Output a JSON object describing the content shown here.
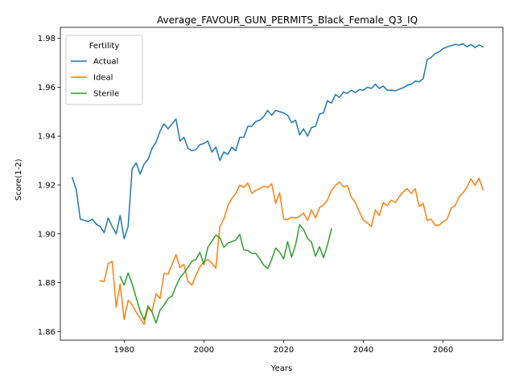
{
  "chart_data": {
    "type": "line",
    "title": "Average_FAVOUR_GUN_PERMITS_Black_Female_Q3_IQ",
    "xlabel": "Years",
    "ylabel": "Score(1-2)",
    "xlim": [
      1964,
      2075
    ],
    "ylim": [
      1.8565,
      1.9845
    ],
    "xticks": [
      1980,
      2000,
      2020,
      2040,
      2060
    ],
    "yticks": [
      1.86,
      1.88,
      1.9,
      1.92,
      1.94,
      1.96,
      1.98
    ],
    "ytick_labels": [
      "1.86",
      "1.88",
      "1.90",
      "1.92",
      "1.94",
      "1.96",
      "1.98"
    ],
    "legend": {
      "title": "Fertility",
      "position": "top-left"
    },
    "grid": false,
    "series": [
      {
        "name": "Actual",
        "color": "#1f77b4",
        "points": [
          [
            1967,
            1.923
          ],
          [
            1968,
            1.918
          ],
          [
            1969,
            1.906
          ],
          [
            1970,
            1.9055
          ],
          [
            1971,
            1.905
          ],
          [
            1972,
            1.906
          ],
          [
            1973,
            1.904
          ],
          [
            1974,
            1.903
          ],
          [
            1975,
            1.9005
          ],
          [
            1976,
            1.9065
          ],
          [
            1977,
            1.903
          ],
          [
            1978,
            1.9
          ],
          [
            1979,
            1.9075
          ],
          [
            1980,
            1.898
          ],
          [
            1981,
            1.903
          ],
          [
            1982,
            1.9265
          ],
          [
            1983,
            1.929
          ],
          [
            1984,
            1.9245
          ],
          [
            1985,
            1.9285
          ],
          [
            1986,
            1.9305
          ],
          [
            1987,
            1.935
          ],
          [
            1988,
            1.9375
          ],
          [
            1989,
            1.942
          ],
          [
            1990,
            1.945
          ],
          [
            1991,
            1.943
          ],
          [
            1992,
            1.945
          ],
          [
            1993,
            1.947
          ],
          [
            1994,
            1.938
          ],
          [
            1995,
            1.9395
          ],
          [
            1996,
            1.935
          ],
          [
            1997,
            1.934
          ],
          [
            1998,
            1.9345
          ],
          [
            1999,
            1.9365
          ],
          [
            2000,
            1.937
          ],
          [
            2001,
            1.938
          ],
          [
            2002,
            1.9335
          ],
          [
            2003,
            1.9355
          ],
          [
            2004,
            1.93
          ],
          [
            2005,
            1.9335
          ],
          [
            2006,
            1.9325
          ],
          [
            2007,
            1.9355
          ],
          [
            2008,
            1.934
          ],
          [
            2009,
            1.9395
          ],
          [
            2010,
            1.9395
          ],
          [
            2011,
            1.944
          ],
          [
            2012,
            1.944
          ],
          [
            2013,
            1.946
          ],
          [
            2014,
            1.9465
          ],
          [
            2015,
            1.948
          ],
          [
            2016,
            1.9505
          ],
          [
            2017,
            1.9485
          ],
          [
            2018,
            1.9505
          ],
          [
            2019,
            1.95
          ],
          [
            2020,
            1.9495
          ],
          [
            2021,
            1.9485
          ],
          [
            2022,
            1.9455
          ],
          [
            2023,
            1.9465
          ],
          [
            2024,
            1.9405
          ],
          [
            2025,
            1.943
          ],
          [
            2026,
            1.94
          ],
          [
            2027,
            1.9435
          ],
          [
            2028,
            1.944
          ],
          [
            2029,
            1.949
          ],
          [
            2030,
            1.9495
          ],
          [
            2031,
            1.9545
          ],
          [
            2032,
            1.9535
          ],
          [
            2033,
            1.957
          ],
          [
            2034,
            1.9558
          ],
          [
            2035,
            1.958
          ],
          [
            2036,
            1.9575
          ],
          [
            2037,
            1.9588
          ],
          [
            2038,
            1.9578
          ],
          [
            2039,
            1.959
          ],
          [
            2040,
            1.9588
          ],
          [
            2041,
            1.96
          ],
          [
            2042,
            1.9595
          ],
          [
            2043,
            1.9612
          ],
          [
            2044,
            1.9595
          ],
          [
            2045,
            1.9605
          ],
          [
            2046,
            1.9587
          ],
          [
            2047,
            1.9588
          ],
          [
            2048,
            1.9585
          ],
          [
            2049,
            1.9592
          ],
          [
            2050,
            1.9598
          ],
          [
            2051,
            1.9608
          ],
          [
            2052,
            1.9612
          ],
          [
            2053,
            1.9625
          ],
          [
            2054,
            1.9622
          ],
          [
            2055,
            1.9635
          ],
          [
            2056,
            1.9712
          ],
          [
            2057,
            1.9722
          ],
          [
            2058,
            1.9738
          ],
          [
            2059,
            1.9745
          ],
          [
            2060,
            1.9758
          ],
          [
            2061,
            1.9765
          ],
          [
            2062,
            1.977
          ],
          [
            2063,
            1.9775
          ],
          [
            2064,
            1.9772
          ],
          [
            2065,
            1.9778
          ],
          [
            2066,
            1.9765
          ],
          [
            2067,
            1.9775
          ],
          [
            2068,
            1.9762
          ],
          [
            2069,
            1.9773
          ],
          [
            2070,
            1.9765
          ]
        ]
      },
      {
        "name": "Ideal",
        "color": "#ff7f0e",
        "points": [
          [
            1974,
            1.8808
          ],
          [
            1975,
            1.8805
          ],
          [
            1976,
            1.8878
          ],
          [
            1977,
            1.8888
          ],
          [
            1978,
            1.87
          ],
          [
            1979,
            1.8795
          ],
          [
            1980,
            1.865
          ],
          [
            1981,
            1.8728
          ],
          [
            1982,
            1.871
          ],
          [
            1983,
            1.868
          ],
          [
            1984,
            1.8655
          ],
          [
            1985,
            1.863
          ],
          [
            1986,
            1.8698
          ],
          [
            1987,
            1.8682
          ],
          [
            1988,
            1.8755
          ],
          [
            1989,
            1.8735
          ],
          [
            1990,
            1.8838
          ],
          [
            1991,
            1.8835
          ],
          [
            1992,
            1.8875
          ],
          [
            1993,
            1.8915
          ],
          [
            1994,
            1.8862
          ],
          [
            1995,
            1.8875
          ],
          [
            1996,
            1.8805
          ],
          [
            1997,
            1.879
          ],
          [
            1998,
            1.883
          ],
          [
            1999,
            1.8865
          ],
          [
            2000,
            1.8885
          ],
          [
            2001,
            1.8895
          ],
          [
            2002,
            1.888
          ],
          [
            2003,
            1.886
          ],
          [
            2004,
            1.903
          ],
          [
            2005,
            1.906
          ],
          [
            2006,
            1.9115
          ],
          [
            2007,
            1.9145
          ],
          [
            2008,
            1.9165
          ],
          [
            2009,
            1.92
          ],
          [
            2010,
            1.919
          ],
          [
            2011,
            1.9208
          ],
          [
            2012,
            1.9165
          ],
          [
            2013,
            1.9178
          ],
          [
            2014,
            1.9185
          ],
          [
            2015,
            1.9195
          ],
          [
            2016,
            1.919
          ],
          [
            2017,
            1.9205
          ],
          [
            2018,
            1.9125
          ],
          [
            2019,
            1.9168
          ],
          [
            2020,
            1.906
          ],
          [
            2021,
            1.9058
          ],
          [
            2022,
            1.9068
          ],
          [
            2023,
            1.9065
          ],
          [
            2024,
            1.9072
          ],
          [
            2025,
            1.9085
          ],
          [
            2026,
            1.9055
          ],
          [
            2027,
            1.9098
          ],
          [
            2028,
            1.9065
          ],
          [
            2029,
            1.9108
          ],
          [
            2030,
            1.9118
          ],
          [
            2031,
            1.9138
          ],
          [
            2032,
            1.9178
          ],
          [
            2033,
            1.9198
          ],
          [
            2034,
            1.9212
          ],
          [
            2035,
            1.9192
          ],
          [
            2036,
            1.9198
          ],
          [
            2037,
            1.915
          ],
          [
            2038,
            1.9128
          ],
          [
            2039,
            1.909
          ],
          [
            2040,
            1.9055
          ],
          [
            2041,
            1.9045
          ],
          [
            2042,
            1.903
          ],
          [
            2043,
            1.9098
          ],
          [
            2044,
            1.9075
          ],
          [
            2045,
            1.9128
          ],
          [
            2046,
            1.9115
          ],
          [
            2047,
            1.9138
          ],
          [
            2048,
            1.9128
          ],
          [
            2049,
            1.9152
          ],
          [
            2050,
            1.9172
          ],
          [
            2051,
            1.9185
          ],
          [
            2052,
            1.9165
          ],
          [
            2053,
            1.9185
          ],
          [
            2054,
            1.9112
          ],
          [
            2055,
            1.9125
          ],
          [
            2056,
            1.9055
          ],
          [
            2057,
            1.906
          ],
          [
            2058,
            1.9035
          ],
          [
            2059,
            1.9035
          ],
          [
            2060,
            1.905
          ],
          [
            2061,
            1.906
          ],
          [
            2062,
            1.9105
          ],
          [
            2063,
            1.9115
          ],
          [
            2064,
            1.9152
          ],
          [
            2065,
            1.9168
          ],
          [
            2066,
            1.9192
          ],
          [
            2067,
            1.9225
          ],
          [
            2068,
            1.9198
          ],
          [
            2069,
            1.9228
          ],
          [
            2070,
            1.918
          ]
        ]
      },
      {
        "name": "Sterile",
        "color": "#2ca02c",
        "points": [
          [
            1979,
            1.8825
          ],
          [
            1980,
            1.879
          ],
          [
            1981,
            1.884
          ],
          [
            1982,
            1.8795
          ],
          [
            1983,
            1.874
          ],
          [
            1984,
            1.8685
          ],
          [
            1985,
            1.8648
          ],
          [
            1986,
            1.8705
          ],
          [
            1987,
            1.868
          ],
          [
            1988,
            1.8635
          ],
          [
            1989,
            1.8688
          ],
          [
            1990,
            1.8708
          ],
          [
            1991,
            1.8735
          ],
          [
            1992,
            1.8745
          ],
          [
            1993,
            1.8785
          ],
          [
            1994,
            1.882
          ],
          [
            1995,
            1.884
          ],
          [
            1996,
            1.8862
          ],
          [
            1997,
            1.8888
          ],
          [
            1998,
            1.8895
          ],
          [
            1999,
            1.8925
          ],
          [
            2000,
            1.8875
          ],
          [
            2001,
            1.8945
          ],
          [
            2002,
            1.897
          ],
          [
            2003,
            1.8995
          ],
          [
            2004,
            1.8985
          ],
          [
            2005,
            1.8945
          ],
          [
            2006,
            1.8962
          ],
          [
            2007,
            1.8968
          ],
          [
            2008,
            1.8975
          ],
          [
            2009,
            1.8998
          ],
          [
            2010,
            1.8935
          ],
          [
            2011,
            1.8932
          ],
          [
            2012,
            1.892
          ],
          [
            2013,
            1.892
          ],
          [
            2014,
            1.8898
          ],
          [
            2015,
            1.8872
          ],
          [
            2016,
            1.8858
          ],
          [
            2017,
            1.8895
          ],
          [
            2018,
            1.8942
          ],
          [
            2019,
            1.8925
          ],
          [
            2020,
            1.8898
          ],
          [
            2021,
            1.8968
          ],
          [
            2022,
            1.8905
          ],
          [
            2023,
            1.8955
          ],
          [
            2024,
            1.9038
          ],
          [
            2025,
            1.9018
          ],
          [
            2026,
            1.8982
          ],
          [
            2027,
            1.8965
          ],
          [
            2028,
            1.8908
          ],
          [
            2029,
            1.8948
          ],
          [
            2030,
            1.8902
          ],
          [
            2031,
            1.8955
          ],
          [
            2032,
            1.902
          ]
        ]
      }
    ]
  }
}
